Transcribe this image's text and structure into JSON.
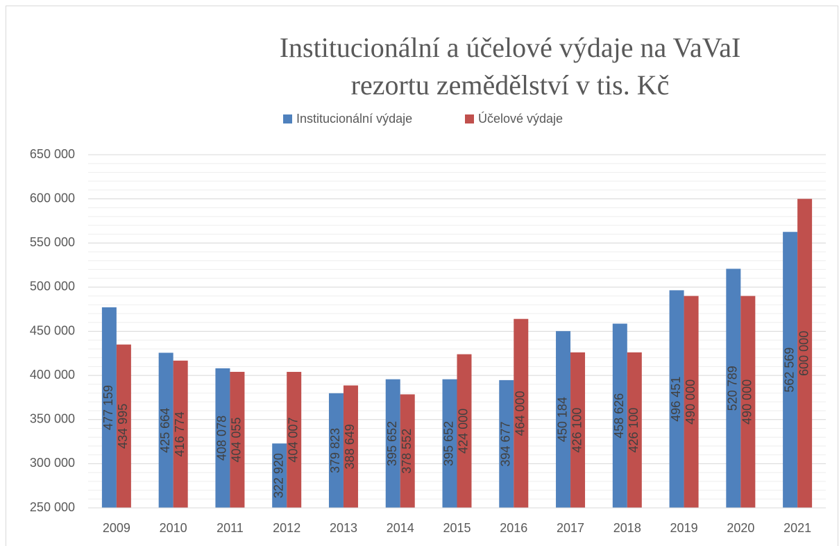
{
  "chart_data": {
    "type": "bar",
    "title": [
      "Institucionální a účelové výdaje na VaVaI",
      "rezortu zemědělství v tis. Kč"
    ],
    "categories": [
      "2009",
      "2010",
      "2011",
      "2012",
      "2013",
      "2014",
      "2015",
      "2016",
      "2017",
      "2018",
      "2019",
      "2020",
      "2021"
    ],
    "series": [
      {
        "name": "Institucionální výdaje",
        "color": "#4f81bd",
        "values": [
          477159,
          425664,
          408078,
          322920,
          379823,
          395652,
          395652,
          394677,
          450184,
          458626,
          496451,
          520789,
          562569
        ],
        "value_labels": [
          "477 159",
          "425 664",
          "408 078",
          "322 920",
          "379 823",
          "395 652",
          "395 652",
          "394 677",
          "450 184",
          "458 626",
          "496 451",
          "520 789",
          "562 569"
        ]
      },
      {
        "name": "Účelové výdaje",
        "color": "#c0504d",
        "values": [
          434995,
          416774,
          404055,
          404007,
          388649,
          378552,
          424000,
          464000,
          426100,
          426100,
          490000,
          490000,
          600000
        ],
        "value_labels": [
          "434 995",
          "416 774",
          "404 055",
          "404 007",
          "388 649",
          "378 552",
          "424 000",
          "464 000",
          "426 100",
          "426 100",
          "490 000",
          "490 000",
          "600 000"
        ]
      }
    ],
    "ylim": [
      250000,
      650000
    ],
    "yticks": [
      {
        "value": 250000,
        "label": "250 000"
      },
      {
        "value": 300000,
        "label": "300 000"
      },
      {
        "value": 350000,
        "label": "350 000"
      },
      {
        "value": 400000,
        "label": "400 000"
      },
      {
        "value": 450000,
        "label": "450 000"
      },
      {
        "value": 500000,
        "label": "500 000"
      },
      {
        "value": 550000,
        "label": "550 000"
      },
      {
        "value": 600000,
        "label": "600 000"
      },
      {
        "value": 650000,
        "label": "650 000"
      }
    ],
    "grid": true,
    "minor_grid_step": 10000,
    "legend": "top"
  }
}
